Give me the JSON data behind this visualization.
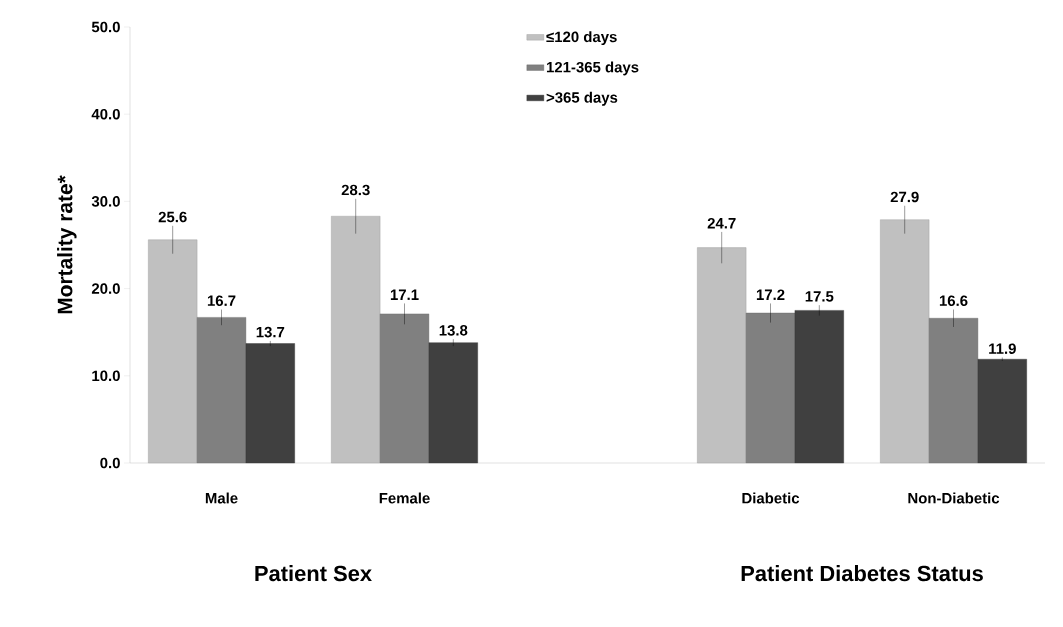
{
  "chart_data": {
    "type": "bar",
    "ylabel": "Mortality rate*",
    "categories": [
      "Male",
      "Female",
      null,
      "Diabetic",
      "Non-Diabetic"
    ],
    "series": [
      {
        "name": "≤120 days",
        "color": "#c0c0c0",
        "values": [
          25.6,
          28.3,
          null,
          24.7,
          27.9
        ],
        "errors": [
          1.6,
          2.0,
          null,
          1.8,
          1.6
        ]
      },
      {
        "name": "121-365 days",
        "color": "#808080",
        "values": [
          16.7,
          17.1,
          null,
          17.2,
          16.6
        ],
        "errors": [
          0.9,
          1.2,
          null,
          1.1,
          1.0
        ]
      },
      {
        "name": ">365 days",
        "color": "#404040",
        "values": [
          13.7,
          13.8,
          null,
          17.5,
          11.9
        ],
        "errors": [
          0.3,
          0.4,
          null,
          0.6,
          0.2
        ]
      }
    ],
    "ylim": [
      0,
      50
    ],
    "yticks": [
      {
        "value": 0,
        "label": "0.0"
      },
      {
        "value": 10,
        "label": "10.0"
      },
      {
        "value": 20,
        "label": "20.0"
      },
      {
        "value": 30,
        "label": "30.0"
      },
      {
        "value": 40,
        "label": "40.0"
      },
      {
        "value": 50,
        "label": "50.0"
      }
    ],
    "data_labels": true,
    "legend": "top",
    "grid": false,
    "annotations": [
      "Patient Sex",
      "Patient Diabetes Status"
    ]
  }
}
